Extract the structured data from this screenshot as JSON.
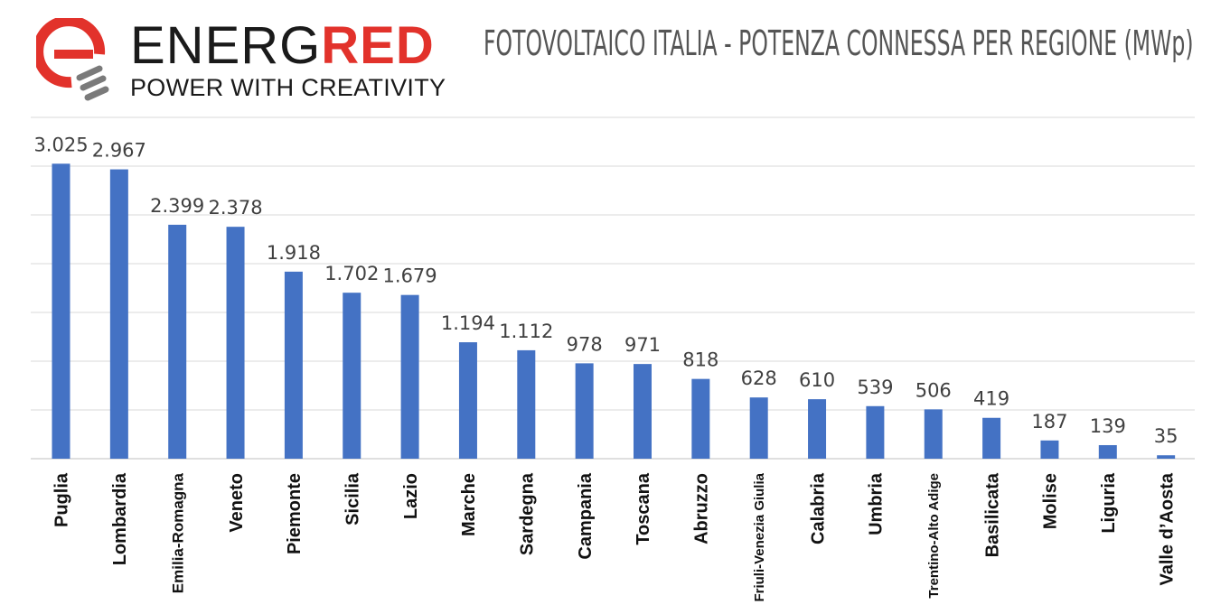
{
  "logo": {
    "name_part1": "ENERG",
    "name_part2": "RED",
    "tagline": "POWER WITH CREATIVITY",
    "icon": "energred-logo-icon",
    "colors": {
      "red": "#e2322b",
      "dark": "#1a1a1a",
      "gray": "#7a7a7a"
    }
  },
  "chart_data": {
    "type": "bar",
    "title": "FOTOVOLTAICO ITALIA - POTENZA CONNESSA PER REGIONE  (MWp)",
    "categories": [
      "Puglia",
      "Lombardia",
      "Emilia-Romagna",
      "Veneto",
      "Piemonte",
      "Sicilia",
      "Lazio",
      "Marche",
      "Sardegna",
      "Campania",
      "Toscana",
      "Abruzzo",
      "Friuli-Venezia Giulia",
      "Calabria",
      "Umbria",
      "Trentino-Alto Adige",
      "Basilicata",
      "Molise",
      "Liguria",
      "Valle d’Aosta"
    ],
    "values": [
      3025,
      2967,
      2399,
      2378,
      1918,
      1702,
      1679,
      1194,
      1112,
      978,
      971,
      818,
      628,
      610,
      539,
      506,
      419,
      187,
      139,
      35
    ],
    "value_labels": [
      "3.025",
      "2.967",
      "2.399",
      "2.378",
      "1.918",
      "1.702",
      "1.679",
      "1.194",
      "1.112",
      "978",
      "971",
      "818",
      "628",
      "610",
      "539",
      "506",
      "419",
      "187",
      "139",
      "35"
    ],
    "xlabel": "",
    "ylabel": "",
    "ylim": [
      0,
      3500
    ],
    "grid": true,
    "bar_color": "#4472c4",
    "grid_color": "#d9d9d9"
  }
}
